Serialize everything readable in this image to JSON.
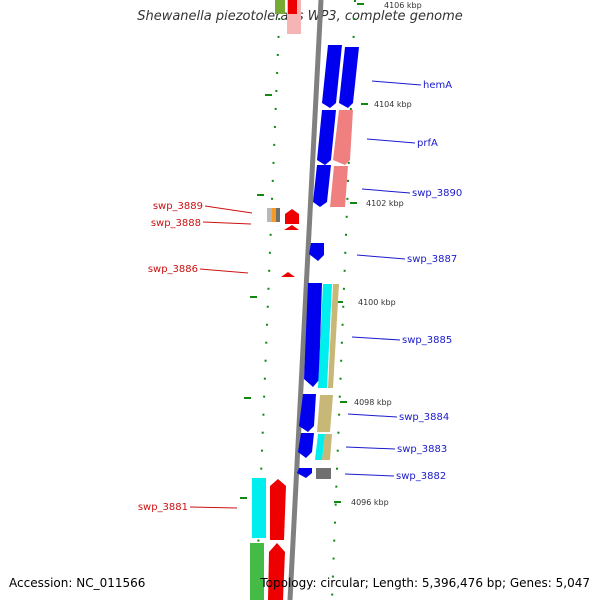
{
  "title": "Shewanella piezotolerans WP3, complete genome",
  "accession": "Accession: NC_011566",
  "topology": "Topology: circular; Length: 5,396,476 bp; Genes: 5,047",
  "colors": {
    "backbone": "#808080",
    "blue": "#0000ee",
    "red": "#ee0000",
    "salmon": "#f08080",
    "pink": "#f5b5b5",
    "cyan": "#00eeee",
    "khaki": "#c8b878",
    "orange": "#f59a23",
    "silver": "#b8b8b8",
    "gray": "#707070",
    "green": "#44bb44",
    "olive": "#77aa33",
    "tick": "#118811",
    "label_right": "#1a1acc",
    "label_left": "#cc1111"
  },
  "scale_labels": [
    {
      "id": "tick-4106",
      "text": "4106 kbp"
    },
    {
      "id": "tick-4104",
      "text": "4104 kbp"
    },
    {
      "id": "tick-4102",
      "text": "4102 kbp"
    },
    {
      "id": "tick-4100",
      "text": "4100 kbp"
    },
    {
      "id": "tick-4098",
      "text": "4098 kbp"
    },
    {
      "id": "tick-4096",
      "text": "4096 kbp"
    }
  ],
  "gene_labels_right": [
    "hemA",
    "prfA",
    "swp_3890",
    "swp_3887",
    "swp_3885",
    "swp_3884",
    "swp_3883",
    "swp_3882"
  ],
  "gene_labels_left": [
    "swp_3889",
    "swp_3888",
    "swp_3886",
    "swp_3881"
  ]
}
